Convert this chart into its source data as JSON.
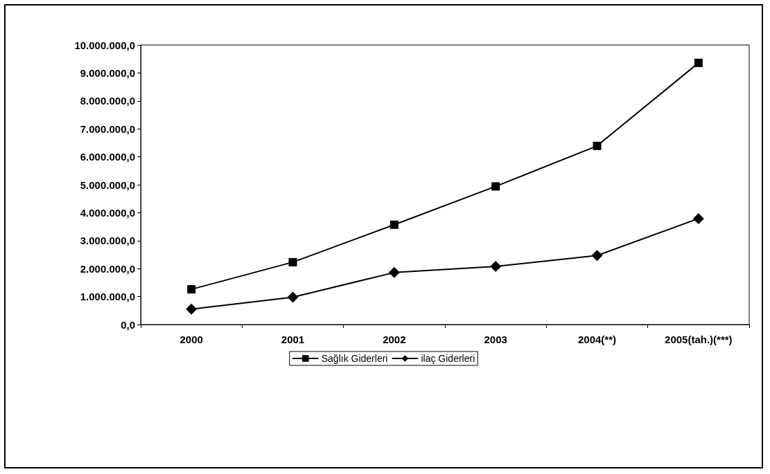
{
  "chart_data": {
    "type": "line",
    "categories": [
      "2000",
      "2001",
      "2002",
      "2003",
      "2004(**)",
      "2005(tah.)(***)"
    ],
    "series": [
      {
        "name": "Sağlık Giderleri",
        "color": "#000000",
        "marker": "square",
        "values": [
          1260000,
          2230000,
          3570000,
          4940000,
          6390000,
          9360000
        ]
      },
      {
        "name": "ilaç Giderleri",
        "color": "#000000",
        "marker": "diamond",
        "values": [
          550000,
          980000,
          1860000,
          2080000,
          2470000,
          3790000
        ]
      }
    ],
    "ylim": [
      0,
      10000000
    ],
    "yticks": [
      {
        "value": 0,
        "label": "0,0"
      },
      {
        "value": 1000000,
        "label": "1.000.000,0"
      },
      {
        "value": 2000000,
        "label": "2.000.000,0"
      },
      {
        "value": 3000000,
        "label": "3.000.000,0"
      },
      {
        "value": 4000000,
        "label": "4.000.000,0"
      },
      {
        "value": 5000000,
        "label": "5.000.000,0"
      },
      {
        "value": 6000000,
        "label": "6.000.000,0"
      },
      {
        "value": 7000000,
        "label": "7.000.000,0"
      },
      {
        "value": 8000000,
        "label": "8.000.000,0"
      },
      {
        "value": 9000000,
        "label": "9.000.000,0"
      },
      {
        "value": 10000000,
        "label": "10.000.000,0"
      }
    ],
    "grid": false,
    "legend": "bottom",
    "line_style": "solid"
  }
}
